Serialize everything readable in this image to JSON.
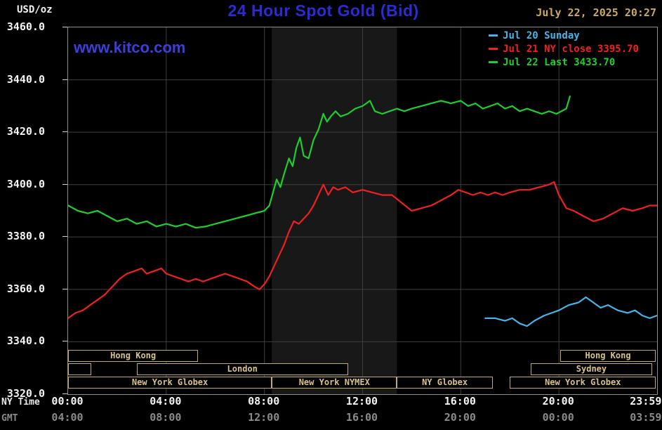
{
  "header": {
    "units_label": "USD/oz",
    "title": "24 Hour Spot Gold (Bid)",
    "datetime": "July 22, 2025 20:27",
    "watermark": "www.kitco.com"
  },
  "axes": {
    "ny_time_label": "NY Time",
    "gmt_label": "GMT"
  },
  "legend": [
    {
      "label": "Jul 20 Sunday",
      "color": "#45b4ea"
    },
    {
      "label": "Jul 21 NY close 3395.70",
      "color": "#ee2020"
    },
    {
      "label": "Jul 22 Last 3433.70",
      "color": "#1ccf2e"
    }
  ],
  "sessions": {
    "border_color": "#c2ab70",
    "text_color": "#d8c288",
    "rows": [
      {
        "boxes": [
          {
            "label": "Hong Kong",
            "start": 0,
            "end": 5.3
          },
          {
            "label": "Hong Kong",
            "start": 20.05,
            "end": 23.95
          }
        ]
      },
      {
        "boxes": [
          {
            "label": "",
            "start": 0,
            "end": 0.95
          },
          {
            "label": "London",
            "start": 2.8,
            "end": 11.4
          },
          {
            "label": "Sydney",
            "start": 18.85,
            "end": 23.8
          }
        ]
      },
      {
        "boxes": [
          {
            "label": "New York Globex",
            "start": 0,
            "end": 8.3
          },
          {
            "label": "New York NYMEX",
            "start": 8.3,
            "end": 13.4
          },
          {
            "label": "NY Globex",
            "start": 13.4,
            "end": 17.3
          },
          {
            "label": "New York Globex",
            "start": 18,
            "end": 23.95
          }
        ]
      }
    ]
  },
  "chart_data": {
    "type": "line",
    "title": "24 Hour Spot Gold (Bid)",
    "ylabel": "USD/oz",
    "xlim_hours": [
      0,
      24
    ],
    "ylim": [
      3320,
      3460
    ],
    "grid": true,
    "band": {
      "start_hour": 8.3,
      "end_hour": 13.4,
      "color": "#181818",
      "note": "New York NYMEX session shading"
    },
    "y_ticks": [
      {
        "label": "3460.0",
        "value": 3460
      },
      {
        "label": "3440.0",
        "value": 3440
      },
      {
        "label": "3420.0",
        "value": 3420
      },
      {
        "label": "3400.0",
        "value": 3400
      },
      {
        "label": "3380.0",
        "value": 3380
      },
      {
        "label": "3360.0",
        "value": 3360
      },
      {
        "label": "3340.0",
        "value": 3340
      },
      {
        "label": "3320.0",
        "value": 3320
      }
    ],
    "x_ticks_ny": [
      {
        "label": "00:00",
        "hour": 0
      },
      {
        "label": "04:00",
        "hour": 4
      },
      {
        "label": "08:00",
        "hour": 8
      },
      {
        "label": "12:00",
        "hour": 12
      },
      {
        "label": "16:00",
        "hour": 16
      },
      {
        "label": "20:00",
        "hour": 20
      },
      {
        "label": "23:59",
        "hour": 23.98,
        "align": "right"
      }
    ],
    "x_ticks_gmt": [
      {
        "label": "04:00",
        "hour": 0
      },
      {
        "label": "08:00",
        "hour": 4
      },
      {
        "label": "12:00",
        "hour": 8
      },
      {
        "label": "16:00",
        "hour": 12
      },
      {
        "label": "20:00",
        "hour": 16
      },
      {
        "label": "00:00",
        "hour": 20
      },
      {
        "label": "03:59",
        "hour": 23.98,
        "align": "right"
      }
    ],
    "grid_hours": [
      4,
      8,
      12,
      16,
      20
    ],
    "grid_values": [
      3340,
      3360,
      3380,
      3400,
      3420,
      3440
    ],
    "series": [
      {
        "name": "Jul 20 Sunday",
        "color": "#45b4ea",
        "points": [
          [
            17,
            3349
          ],
          [
            17.4,
            3349
          ],
          [
            17.8,
            3348
          ],
          [
            18.1,
            3349
          ],
          [
            18.4,
            3347
          ],
          [
            18.7,
            3346
          ],
          [
            19,
            3348
          ],
          [
            19.4,
            3350
          ],
          [
            19.7,
            3351
          ],
          [
            20,
            3352
          ],
          [
            20.4,
            3354
          ],
          [
            20.8,
            3355
          ],
          [
            21.1,
            3357
          ],
          [
            21.4,
            3355
          ],
          [
            21.7,
            3353
          ],
          [
            22,
            3354
          ],
          [
            22.4,
            3352
          ],
          [
            22.8,
            3351
          ],
          [
            23.1,
            3352
          ],
          [
            23.4,
            3350
          ],
          [
            23.7,
            3349
          ],
          [
            24,
            3350
          ]
        ]
      },
      {
        "name": "Jul 21 NY close",
        "close": 3395.7,
        "color": "#ee2020",
        "points": [
          [
            0,
            3349
          ],
          [
            0.3,
            3351
          ],
          [
            0.6,
            3352
          ],
          [
            0.9,
            3354
          ],
          [
            1.2,
            3356
          ],
          [
            1.5,
            3358
          ],
          [
            1.8,
            3361
          ],
          [
            2.1,
            3364
          ],
          [
            2.4,
            3366
          ],
          [
            2.7,
            3367
          ],
          [
            3,
            3368
          ],
          [
            3.2,
            3366
          ],
          [
            3.5,
            3367
          ],
          [
            3.8,
            3368
          ],
          [
            4,
            3366
          ],
          [
            4.3,
            3365
          ],
          [
            4.6,
            3364
          ],
          [
            4.9,
            3363
          ],
          [
            5.2,
            3364
          ],
          [
            5.5,
            3363
          ],
          [
            5.8,
            3364
          ],
          [
            6.1,
            3365
          ],
          [
            6.4,
            3366
          ],
          [
            6.7,
            3365
          ],
          [
            7,
            3364
          ],
          [
            7.3,
            3363
          ],
          [
            7.6,
            3361
          ],
          [
            7.8,
            3360
          ],
          [
            8,
            3362
          ],
          [
            8.2,
            3365
          ],
          [
            8.4,
            3369
          ],
          [
            8.6,
            3373
          ],
          [
            8.8,
            3377
          ],
          [
            9,
            3382
          ],
          [
            9.2,
            3386
          ],
          [
            9.4,
            3385
          ],
          [
            9.6,
            3387
          ],
          [
            9.8,
            3389
          ],
          [
            10,
            3392
          ],
          [
            10.2,
            3396
          ],
          [
            10.4,
            3400
          ],
          [
            10.6,
            3396
          ],
          [
            10.8,
            3399
          ],
          [
            11,
            3398
          ],
          [
            11.3,
            3399
          ],
          [
            11.6,
            3397
          ],
          [
            12,
            3398
          ],
          [
            12.4,
            3397
          ],
          [
            12.8,
            3396
          ],
          [
            13.2,
            3396
          ],
          [
            13.6,
            3393
          ],
          [
            14,
            3390
          ],
          [
            14.4,
            3391
          ],
          [
            14.8,
            3392
          ],
          [
            15.2,
            3394
          ],
          [
            15.6,
            3396
          ],
          [
            15.9,
            3398
          ],
          [
            16.2,
            3397
          ],
          [
            16.5,
            3396
          ],
          [
            16.8,
            3397
          ],
          [
            17.1,
            3396
          ],
          [
            17.4,
            3397
          ],
          [
            17.7,
            3396
          ],
          [
            18,
            3397
          ],
          [
            18.4,
            3398
          ],
          [
            18.8,
            3398
          ],
          [
            19.2,
            3399
          ],
          [
            19.6,
            3400
          ],
          [
            19.8,
            3401
          ],
          [
            20,
            3396
          ],
          [
            20.3,
            3391
          ],
          [
            20.6,
            3390
          ],
          [
            21,
            3388
          ],
          [
            21.4,
            3386
          ],
          [
            21.8,
            3387
          ],
          [
            22.2,
            3389
          ],
          [
            22.6,
            3391
          ],
          [
            23,
            3390
          ],
          [
            23.4,
            3391
          ],
          [
            23.7,
            3392
          ],
          [
            24,
            3392
          ]
        ]
      },
      {
        "name": "Jul 22 Last",
        "last": 3433.7,
        "color": "#1ccf2e",
        "points": [
          [
            0,
            3392
          ],
          [
            0.4,
            3390
          ],
          [
            0.8,
            3389
          ],
          [
            1.2,
            3390
          ],
          [
            1.6,
            3388
          ],
          [
            2,
            3386
          ],
          [
            2.4,
            3387
          ],
          [
            2.8,
            3385
          ],
          [
            3.2,
            3386
          ],
          [
            3.6,
            3384
          ],
          [
            4,
            3385
          ],
          [
            4.4,
            3384
          ],
          [
            4.8,
            3385
          ],
          [
            5.2,
            3383.5
          ],
          [
            5.6,
            3384
          ],
          [
            6,
            3385
          ],
          [
            6.4,
            3386
          ],
          [
            6.8,
            3387
          ],
          [
            7.2,
            3388
          ],
          [
            7.6,
            3389
          ],
          [
            8,
            3390
          ],
          [
            8.2,
            3392
          ],
          [
            8.35,
            3397
          ],
          [
            8.5,
            3402
          ],
          [
            8.65,
            3399
          ],
          [
            8.8,
            3404
          ],
          [
            9,
            3410
          ],
          [
            9.15,
            3407
          ],
          [
            9.3,
            3414
          ],
          [
            9.45,
            3418
          ],
          [
            9.6,
            3411
          ],
          [
            9.8,
            3410
          ],
          [
            10,
            3417
          ],
          [
            10.2,
            3421
          ],
          [
            10.4,
            3427
          ],
          [
            10.55,
            3424
          ],
          [
            10.7,
            3426
          ],
          [
            10.9,
            3428
          ],
          [
            11.1,
            3426
          ],
          [
            11.4,
            3427
          ],
          [
            11.7,
            3429
          ],
          [
            12,
            3430
          ],
          [
            12.3,
            3432
          ],
          [
            12.5,
            3428
          ],
          [
            12.8,
            3427
          ],
          [
            13.1,
            3428
          ],
          [
            13.4,
            3429
          ],
          [
            13.7,
            3428
          ],
          [
            14,
            3429
          ],
          [
            14.4,
            3430
          ],
          [
            14.8,
            3431
          ],
          [
            15.2,
            3432
          ],
          [
            15.6,
            3431
          ],
          [
            16,
            3432
          ],
          [
            16.3,
            3430
          ],
          [
            16.6,
            3431
          ],
          [
            16.9,
            3429
          ],
          [
            17.2,
            3430
          ],
          [
            17.5,
            3431
          ],
          [
            17.8,
            3429
          ],
          [
            18.1,
            3430
          ],
          [
            18.4,
            3428
          ],
          [
            18.7,
            3429
          ],
          [
            19,
            3428
          ],
          [
            19.3,
            3427
          ],
          [
            19.6,
            3428
          ],
          [
            19.9,
            3427
          ],
          [
            20.1,
            3428
          ],
          [
            20.3,
            3429
          ],
          [
            20.45,
            3433.7
          ]
        ]
      }
    ]
  }
}
